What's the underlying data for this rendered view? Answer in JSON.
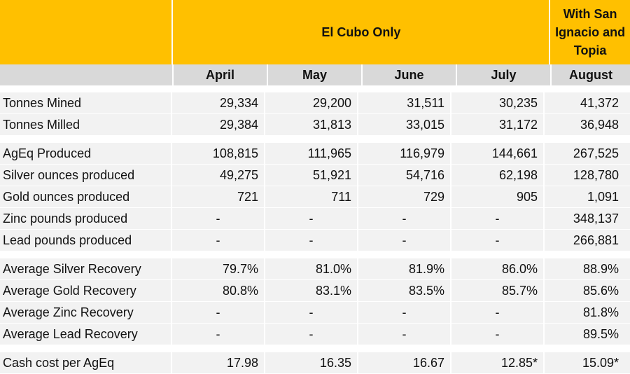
{
  "header": {
    "group1": "El Cubo Only",
    "group2_line1": "With San",
    "group2_line2": "Ignacio and",
    "group2_line3": "Topia"
  },
  "months": [
    "April",
    "May",
    "June",
    "July",
    "August"
  ],
  "sections": [
    {
      "rows": [
        {
          "label": "Tonnes Mined",
          "values": [
            "29,334",
            "29,200",
            "31,511",
            "30,235",
            "41,372"
          ]
        },
        {
          "label": "Tonnes Milled",
          "values": [
            "29,384",
            "31,813",
            "33,015",
            "31,172",
            "36,948"
          ]
        }
      ]
    },
    {
      "rows": [
        {
          "label": "AgEq Produced",
          "values": [
            "108,815",
            "111,965",
            "116,979",
            "144,661",
            "267,525"
          ]
        },
        {
          "label": "Silver ounces produced",
          "values": [
            "49,275",
            "51,921",
            "54,716",
            "62,198",
            "128,780"
          ]
        },
        {
          "label": "Gold ounces produced",
          "values": [
            "721",
            "711",
            "729",
            "905",
            "1,091"
          ]
        },
        {
          "label": "Zinc pounds produced",
          "values": [
            "-",
            "-",
            "-",
            "-",
            "348,137"
          ]
        },
        {
          "label": "Lead pounds produced",
          "values": [
            "-",
            "-",
            "-",
            "-",
            "266,881"
          ]
        }
      ]
    },
    {
      "rows": [
        {
          "label": "Average Silver Recovery",
          "values": [
            "79.7%",
            "81.0%",
            "81.9%",
            "86.0%",
            "88.9%"
          ]
        },
        {
          "label": "Average Gold Recovery",
          "values": [
            "80.8%",
            "83.1%",
            "83.5%",
            "85.7%",
            "85.6%"
          ]
        },
        {
          "label": "Average Zinc Recovery",
          "values": [
            "-",
            "-",
            "-",
            "-",
            "81.8%"
          ]
        },
        {
          "label": "Average Lead Recovery",
          "values": [
            "-",
            "-",
            "-",
            "-",
            "89.5%"
          ]
        }
      ]
    },
    {
      "rows": [
        {
          "label": "Cash cost per AgEq",
          "values": [
            "17.98",
            "16.35",
            "16.67",
            "12.85*",
            "15.09*"
          ]
        }
      ]
    }
  ]
}
